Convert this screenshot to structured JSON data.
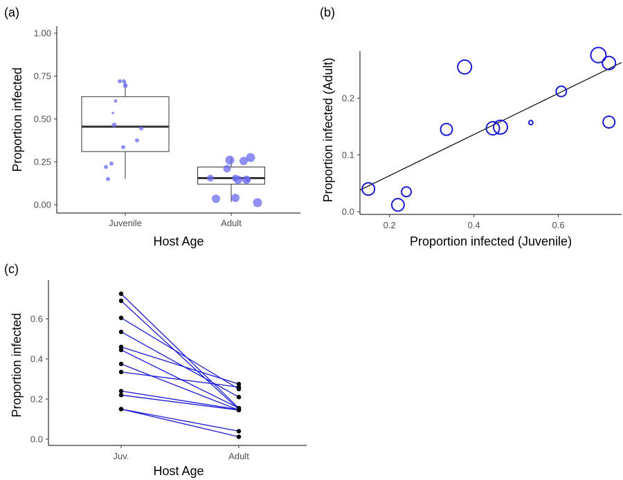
{
  "chart_data": [
    {
      "panel": "(a)",
      "type": "box",
      "xlabel": "Host Age",
      "ylabel": "Proportion infected",
      "ylim": [
        0,
        1.0
      ],
      "yticks": [
        "0.00",
        "0.25",
        "0.50",
        "0.75",
        "1.00"
      ],
      "categories": [
        "Juvenile",
        "Adult"
      ],
      "boxes": [
        {
          "category": "Juvenile",
          "min": 0.15,
          "q1": 0.31,
          "median": 0.455,
          "q3": 0.63,
          "max": 0.72
        },
        {
          "category": "Adult",
          "min": 0.015,
          "q1": 0.12,
          "median": 0.155,
          "q3": 0.22,
          "max": 0.275
        }
      ],
      "points": {
        "Juvenile": [
          0.72,
          0.72,
          0.695,
          0.605,
          0.535,
          0.465,
          0.445,
          0.375,
          0.335,
          0.24,
          0.22,
          0.15
        ],
        "Adult": [
          0.275,
          0.26,
          0.255,
          0.21,
          0.155,
          0.155,
          0.148,
          0.145,
          0.145,
          0.04,
          0.035,
          0.012
        ]
      },
      "point_color": "#6b6bf0"
    },
    {
      "panel": "(b)",
      "type": "scatter",
      "xlabel": "Proportion infected (Juvenile)",
      "ylabel": "Proportion infected (Adult)",
      "xlim": [
        0.13,
        0.75
      ],
      "ylim": [
        0,
        0.28
      ],
      "xticks": [
        "0.2",
        "0.4",
        "0.6"
      ],
      "yticks": [
        "0.0",
        "0.1",
        "0.2"
      ],
      "points": [
        {
          "x": 0.15,
          "y": 0.04,
          "size": 9
        },
        {
          "x": 0.22,
          "y": 0.012,
          "size": 9
        },
        {
          "x": 0.24,
          "y": 0.035,
          "size": 7
        },
        {
          "x": 0.335,
          "y": 0.145,
          "size": 8.5
        },
        {
          "x": 0.378,
          "y": 0.255,
          "size": 10
        },
        {
          "x": 0.445,
          "y": 0.147,
          "size": 9.5
        },
        {
          "x": 0.463,
          "y": 0.149,
          "size": 10
        },
        {
          "x": 0.535,
          "y": 0.157,
          "size": 3
        },
        {
          "x": 0.607,
          "y": 0.212,
          "size": 7.5
        },
        {
          "x": 0.695,
          "y": 0.276,
          "size": 11
        },
        {
          "x": 0.72,
          "y": 0.262,
          "size": 9.5
        },
        {
          "x": 0.72,
          "y": 0.158,
          "size": 8.5
        }
      ],
      "fit_line": {
        "x": [
          0.13,
          0.75
        ],
        "y": [
          0.038,
          0.263
        ]
      },
      "point_color": "#1a1ad6"
    },
    {
      "panel": "(c)",
      "type": "line",
      "xlabel": "Host Age",
      "ylabel": "Proportion infected",
      "categories": [
        "Juv.",
        "Adult"
      ],
      "ylim": [
        0,
        0.72
      ],
      "yticks": [
        "0.0",
        "0.2",
        "0.4",
        "0.6"
      ],
      "pairs": [
        [
          0.725,
          0.155
        ],
        [
          0.69,
          0.148
        ],
        [
          0.605,
          0.25
        ],
        [
          0.535,
          0.21
        ],
        [
          0.46,
          0.275
        ],
        [
          0.445,
          0.155
        ],
        [
          0.375,
          0.145
        ],
        [
          0.335,
          0.26
        ],
        [
          0.24,
          0.148
        ],
        [
          0.22,
          0.145
        ],
        [
          0.15,
          0.04
        ],
        [
          0.15,
          0.012
        ]
      ],
      "line_color": "#1a1ad6",
      "point_color": "#000000"
    }
  ]
}
